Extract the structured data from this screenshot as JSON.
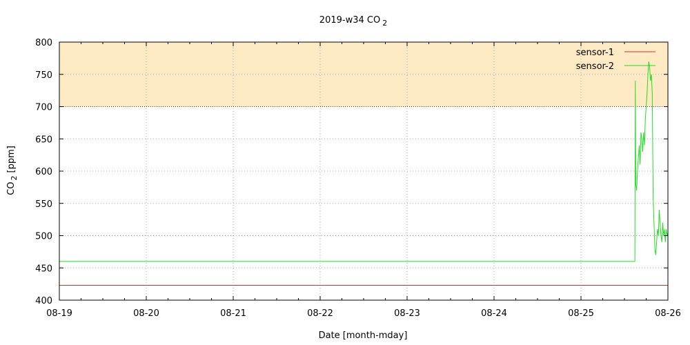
{
  "chart_data": {
    "type": "line",
    "title": "2019-w34 CO",
    "title_sub": "2",
    "xlabel": "Date [month-mday]",
    "ylabel": "CO",
    "ylabel_sub": "2",
    "ylabel_unit": "[ppm]",
    "x_categories": [
      "08-19",
      "08-20",
      "08-21",
      "08-22",
      "08-23",
      "08-24",
      "08-25",
      "08-26"
    ],
    "xlim": [
      0,
      7
    ],
    "ylim": [
      400,
      800
    ],
    "yticks": [
      400,
      450,
      500,
      550,
      600,
      650,
      700,
      750,
      800
    ],
    "grid": true,
    "legend_position": "top-right",
    "threshold_band": {
      "from": 700,
      "to": 800,
      "color": "#fde9c4"
    },
    "series": [
      {
        "name": "sensor-1",
        "color": "#c0392b",
        "points": [
          [
            0,
            423
          ],
          [
            7,
            423
          ]
        ]
      },
      {
        "name": "sensor-2",
        "color": "#22dd22",
        "points": [
          [
            0,
            460
          ],
          [
            6.62,
            460
          ],
          [
            6.625,
            740
          ],
          [
            6.63,
            580
          ],
          [
            6.64,
            570
          ],
          [
            6.65,
            600
          ],
          [
            6.66,
            620
          ],
          [
            6.67,
            640
          ],
          [
            6.68,
            610
          ],
          [
            6.69,
            660
          ],
          [
            6.7,
            650
          ],
          [
            6.71,
            630
          ],
          [
            6.72,
            660
          ],
          [
            6.73,
            640
          ],
          [
            6.74,
            680
          ],
          [
            6.75,
            700
          ],
          [
            6.76,
            720
          ],
          [
            6.77,
            750
          ],
          [
            6.78,
            770
          ],
          [
            6.79,
            760
          ],
          [
            6.8,
            740
          ],
          [
            6.81,
            750
          ],
          [
            6.82,
            720
          ],
          [
            6.83,
            560
          ],
          [
            6.84,
            520
          ],
          [
            6.85,
            480
          ],
          [
            6.86,
            470
          ],
          [
            6.87,
            490
          ],
          [
            6.88,
            510
          ],
          [
            6.89,
            500
          ],
          [
            6.9,
            540
          ],
          [
            6.91,
            520
          ],
          [
            6.92,
            500
          ],
          [
            6.93,
            490
          ],
          [
            6.94,
            520
          ],
          [
            6.95,
            500
          ],
          [
            6.96,
            510
          ],
          [
            6.97,
            490
          ],
          [
            6.98,
            510
          ],
          [
            6.99,
            500
          ],
          [
            7.0,
            505
          ]
        ]
      }
    ]
  }
}
